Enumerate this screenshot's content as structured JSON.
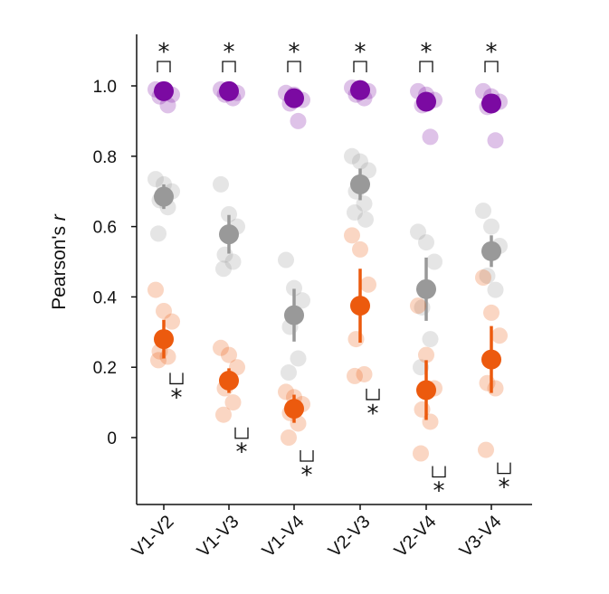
{
  "chart_data": {
    "type": "scatter",
    "ylabel": "Pearson's ",
    "ylabel_italic": "r",
    "ylim": [
      -0.19,
      1.15
    ],
    "yticks": [
      0,
      0.2,
      0.4,
      0.6,
      0.8,
      1.0
    ],
    "ytick_labels": [
      "0",
      "0.2",
      "0.4",
      "0.6",
      "0.8",
      "1.0"
    ],
    "categories": [
      "V1-V2",
      "V1-V3",
      "V1-V4",
      "V2-V3",
      "V2-V4",
      "V3-V4"
    ],
    "significance_marker": "*",
    "series": [
      {
        "color": "#7b0aa2",
        "mean": [
          0.985,
          0.985,
          0.965,
          0.988,
          0.955,
          0.95
        ],
        "error": [
          0.01,
          0.01,
          0.02,
          0.01,
          0.02,
          0.02
        ],
        "points": [
          [
            0.99,
            0.98,
            0.975,
            0.97,
            0.945
          ],
          [
            0.99,
            0.985,
            0.98,
            0.975,
            0.965
          ],
          [
            0.98,
            0.975,
            0.96,
            0.95,
            0.9
          ],
          [
            0.995,
            0.99,
            0.985,
            0.975,
            0.965
          ],
          [
            0.985,
            0.975,
            0.96,
            0.945,
            0.855
          ],
          [
            0.985,
            0.97,
            0.955,
            0.94,
            0.845
          ]
        ]
      },
      {
        "color": "#999999",
        "mean": [
          0.685,
          0.578,
          0.348,
          0.72,
          0.422,
          0.53
        ],
        "error": [
          0.035,
          0.055,
          0.075,
          0.045,
          0.09,
          0.045
        ],
        "points": [
          [
            0.735,
            0.72,
            0.7,
            0.675,
            0.655,
            0.58
          ],
          [
            0.72,
            0.635,
            0.6,
            0.52,
            0.5,
            0.48
          ],
          [
            0.505,
            0.425,
            0.39,
            0.315,
            0.225,
            0.185
          ],
          [
            0.8,
            0.785,
            0.76,
            0.7,
            0.665,
            0.64,
            0.62
          ],
          [
            0.585,
            0.555,
            0.5,
            0.37,
            0.28,
            0.2
          ],
          [
            0.645,
            0.6,
            0.545,
            0.46,
            0.42
          ]
        ]
      },
      {
        "color": "#ec5a0e",
        "mean": [
          0.28,
          0.162,
          0.082,
          0.375,
          0.135,
          0.222
        ],
        "error": [
          0.055,
          0.035,
          0.04,
          0.105,
          0.085,
          0.095
        ],
        "points": [
          [
            0.42,
            0.36,
            0.33,
            0.245,
            0.23,
            0.22
          ],
          [
            0.255,
            0.235,
            0.2,
            0.14,
            0.1,
            0.065
          ],
          [
            0.13,
            0.115,
            0.095,
            0.07,
            0.04,
            0.0
          ],
          [
            0.575,
            0.535,
            0.435,
            0.28,
            0.18,
            0.175
          ],
          [
            0.375,
            0.235,
            0.14,
            0.08,
            0.045,
            -0.045
          ],
          [
            0.455,
            0.355,
            0.29,
            0.155,
            0.14,
            -0.035
          ]
        ]
      }
    ]
  }
}
